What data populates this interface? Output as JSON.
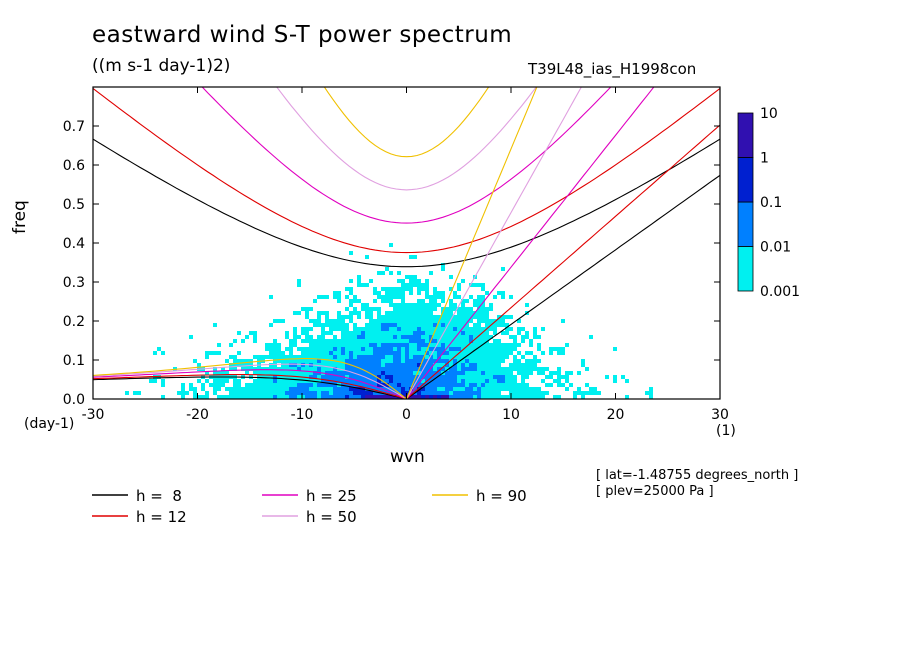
{
  "title": "eastward wind S-T power spectrum",
  "units": "((m s-1 day-1)2)",
  "run_label": "T39L48_ias_H1998con",
  "info": [
    "[ lat=-1.48755 degrees_north ]",
    "[ plev=25000 Pa ]"
  ],
  "chart_data": {
    "type": "heatmap",
    "xlabel": "wvn",
    "ylabel": "freq",
    "x_unit": "(1)",
    "y_unit": "(day-1)",
    "xlim": [
      -30,
      30
    ],
    "ylim": [
      0,
      0.8
    ],
    "xticks": [
      -30,
      -20,
      -10,
      0,
      10,
      20,
      30
    ],
    "xtick_labels": [
      "-30",
      "-20",
      "-10",
      "0",
      "10",
      "20",
      "30"
    ],
    "yticks": [
      0,
      0.1,
      0.2,
      0.3,
      0.4,
      0.5,
      0.6,
      0.7
    ],
    "ytick_labels": [
      "0.0",
      "0.1",
      "0.2",
      "0.3",
      "0.4",
      "0.5",
      "0.6",
      "0.7"
    ],
    "colorbar": {
      "levels": [
        "0.001",
        "0.01",
        "0.1",
        "1",
        "10"
      ],
      "colors": [
        "#00f0f0",
        "#0080ff",
        "#0020d0",
        "#3010b0"
      ]
    },
    "dispersion_curves": [
      {
        "name": "h =  8",
        "h": 8,
        "color": "#000000"
      },
      {
        "name": "h = 12",
        "h": 12,
        "color": "#e00000"
      },
      {
        "name": "h = 25",
        "h": 25,
        "color": "#e000c0"
      },
      {
        "name": "h = 50",
        "h": 50,
        "color": "#e0a0e0"
      },
      {
        "name": "h = 90",
        "h": 90,
        "color": "#f0c000"
      }
    ]
  }
}
